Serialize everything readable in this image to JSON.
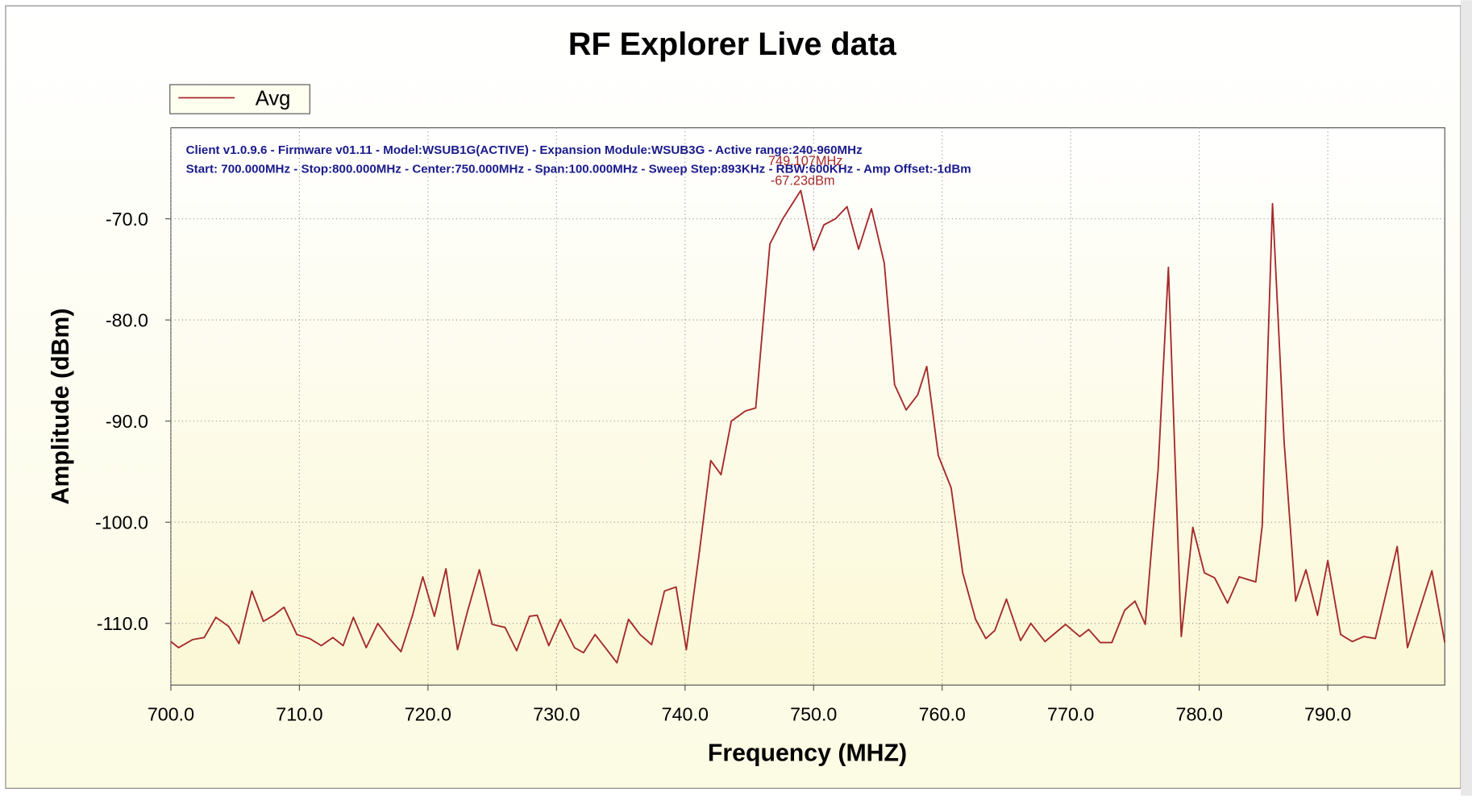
{
  "chart_data": {
    "type": "line",
    "title": "RF Explorer Live data",
    "x_label": "Frequency (MHZ)",
    "y_label": "Amplitude (dBm)",
    "info_lines": [
      "Client v1.0.9.6 - Firmware v01.11 - Model:WSUB1G(ACTIVE) - Expansion Module:WSUB3G - Active range:240-960MHz",
      "Start: 700.000MHz - Stop:800.000MHz - Center:750.000MHz - Span:100.000MHz - Sweep Step:893KHz - RBW:600KHz - Amp Offset:-1dBm"
    ],
    "annotations": [
      "749.107MHz",
      "-67.23dBm"
    ],
    "grid": true,
    "legend_position": "top-left",
    "xlim": [
      700,
      799.1
    ],
    "ylim": [
      -116.1,
      -61
    ],
    "xticks": [
      {
        "value": 700,
        "label": "700.0"
      },
      {
        "value": 710,
        "label": "710.0"
      },
      {
        "value": 720,
        "label": "720.0"
      },
      {
        "value": 730,
        "label": "730.0"
      },
      {
        "value": 740,
        "label": "740.0"
      },
      {
        "value": 750,
        "label": "750.0"
      },
      {
        "value": 760,
        "label": "760.0"
      },
      {
        "value": 770,
        "label": "770.0"
      },
      {
        "value": 780,
        "label": "780.0"
      },
      {
        "value": 790,
        "label": "790.0"
      }
    ],
    "yticks": [
      {
        "value": -70,
        "label": "-70.0"
      },
      {
        "value": -80,
        "label": "-80.0"
      },
      {
        "value": -90,
        "label": "-90.0"
      },
      {
        "value": -100,
        "label": "-100.0"
      },
      {
        "value": -110,
        "label": "-110.0"
      }
    ],
    "x": [
      700,
      700.6,
      701.7,
      702.6,
      703.5,
      704.5,
      705.3,
      706.3,
      707.2,
      708,
      708.8,
      709.8,
      710.8,
      711.7,
      712.6,
      713.4,
      714.2,
      715.2,
      716.1,
      717,
      717.9,
      718.8,
      719.6,
      720.5,
      721.4,
      722.3,
      723.1,
      724,
      725,
      726,
      726.9,
      727.9,
      728.5,
      729.4,
      730.3,
      731.4,
      732.1,
      733,
      733.8,
      734.7,
      735.6,
      736.5,
      737.4,
      738.4,
      739.3,
      740.1,
      741.1,
      742,
      742.8,
      743.6,
      744.7,
      745.5,
      746.6,
      747.6,
      749,
      750,
      750.8,
      751.7,
      752.6,
      753.5,
      754.5,
      755.5,
      756.3,
      757.2,
      758.1,
      758.8,
      759.7,
      760.7,
      761.6,
      762.6,
      763.4,
      764.1,
      765,
      766.1,
      766.9,
      768,
      769.6,
      770.7,
      771.4,
      772.3,
      773.2,
      774.2,
      775,
      775.8,
      776.8,
      777.6,
      778.6,
      779.5,
      780.4,
      781.2,
      782.2,
      783.1,
      784.4,
      784.9,
      785.7,
      786.6,
      787.5,
      788.3,
      789.2,
      790,
      791,
      791.9,
      792.8,
      793.7,
      795.4,
      796.2,
      798.1,
      799.1
    ],
    "series": [
      {
        "name": "Avg",
        "color": "#a52a2a",
        "values": [
          -111.8,
          -112.4,
          -111.6,
          -111.4,
          -109.4,
          -110.3,
          -112.0,
          -106.8,
          -109.8,
          -109.2,
          -108.4,
          -111.1,
          -111.5,
          -112.2,
          -111.4,
          -112.2,
          -109.4,
          -112.4,
          -110.0,
          -111.5,
          -112.8,
          -109.2,
          -105.4,
          -109.3,
          -104.6,
          -112.6,
          -108.7,
          -104.7,
          -110.1,
          -110.4,
          -112.7,
          -109.3,
          -109.2,
          -112.2,
          -109.6,
          -112.4,
          -112.9,
          -111.1,
          -112.4,
          -113.9,
          -109.6,
          -111.1,
          -112.1,
          -106.8,
          -106.4,
          -112.6,
          -103.1,
          -93.9,
          -95.3,
          -90.0,
          -89.0,
          -88.7,
          -72.5,
          -70.0,
          -67.2,
          -73.1,
          -70.6,
          -70.0,
          -68.8,
          -73.0,
          -69.0,
          -74.4,
          -86.4,
          -88.9,
          -87.4,
          -84.6,
          -93.4,
          -96.6,
          -105.0,
          -109.6,
          -111.5,
          -110.7,
          -107.6,
          -111.7,
          -110.0,
          -111.8,
          -110.1,
          -111.3,
          -110.6,
          -111.9,
          -111.9,
          -108.7,
          -107.8,
          -110.1,
          -94.8,
          -74.8,
          -111.3,
          -100.5,
          -105.0,
          -105.5,
          -108.0,
          -105.4,
          -105.9,
          -100.3,
          -68.5,
          -92.0,
          -107.8,
          -104.7,
          -109.2,
          -103.8,
          -111.1,
          -111.8,
          -111.3,
          -111.5,
          -102.4,
          -112.4,
          -104.8,
          -111.9
        ]
      }
    ]
  }
}
